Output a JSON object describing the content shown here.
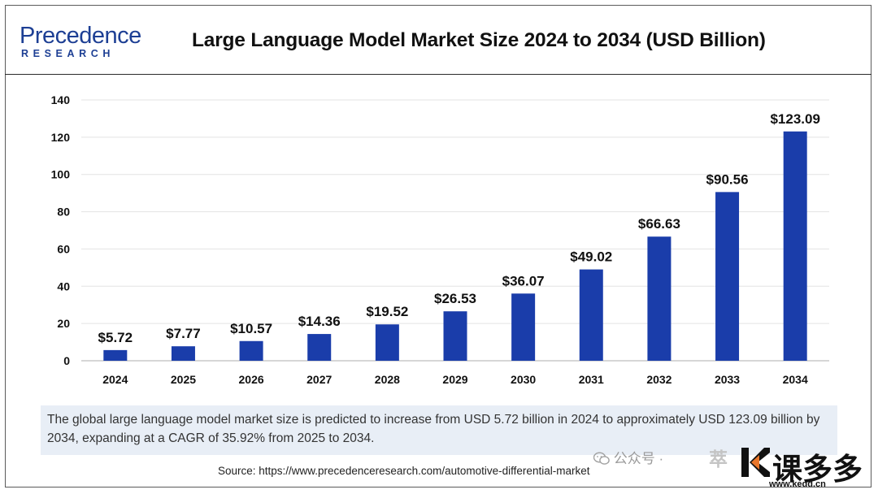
{
  "header": {
    "logo_main": "Precedence",
    "logo_sub": "RESEARCH",
    "title": "Large Language Model Market Size 2024 to 2034 (USD Billion)"
  },
  "chart_data": {
    "type": "bar",
    "title": "Large Language Model Market Size 2024 to 2034 (USD Billion)",
    "categories": [
      "2024",
      "2025",
      "2026",
      "2027",
      "2028",
      "2029",
      "2030",
      "2031",
      "2032",
      "2033",
      "2034"
    ],
    "values": [
      5.72,
      7.77,
      10.57,
      14.36,
      19.52,
      26.53,
      36.07,
      49.02,
      66.63,
      90.56,
      123.09
    ],
    "data_labels": [
      "$5.72",
      "$7.77",
      "$10.57",
      "$14.36",
      "$19.52",
      "$26.53",
      "$36.07",
      "$49.02",
      "$66.63",
      "$90.56",
      "$123.09"
    ],
    "ylim": [
      0,
      140
    ],
    "yticks": [
      0,
      20,
      40,
      60,
      80,
      100,
      120,
      140
    ],
    "xlabel": "",
    "ylabel": "",
    "grid": true,
    "bar_color": "#1a3daa"
  },
  "summary": "The global large language model market size is predicted to increase from USD 5.72 billion in 2024 to approximately USD 123.09 billion by 2034, expanding at a CAGR of 35.92% from 2025 to 2034.",
  "source": "Source: https://www.precedenceresearch.com/automotive-differential-market",
  "watermark": {
    "wechat": "公众号 ·",
    "mid": "萃",
    "brand": "课多多",
    "url": "www.kedd.cn",
    "icon": "wechat-icon"
  }
}
